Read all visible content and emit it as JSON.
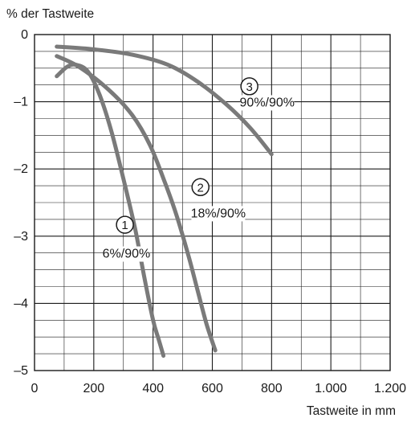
{
  "chart_data": {
    "type": "line",
    "ylabel": "% der Tastweite",
    "xlabel": "Tastweite in mm",
    "xlim": [
      0,
      1200
    ],
    "ylim": [
      -5,
      0
    ],
    "x_ticks": [
      0,
      200,
      400,
      600,
      800,
      1000,
      1200
    ],
    "x_tick_labels": [
      "0",
      "200",
      "400",
      "600",
      "800",
      "1.000",
      "1.200"
    ],
    "y_ticks": [
      0,
      -1,
      -2,
      -3,
      -4,
      -5
    ],
    "y_tick_labels": [
      "0",
      "–1",
      "–2",
      "–3",
      "–4",
      "–5"
    ],
    "x_grid_step": 100,
    "y_grid_step": 0.25,
    "grid": true,
    "line_color": "#7a7a7a",
    "series": [
      {
        "marker": "①",
        "label": "6%/90%",
        "x": [
          75,
          110,
          140,
          180,
          220,
          260,
          300,
          340,
          370,
          400,
          420,
          435
        ],
        "y": [
          -0.62,
          -0.48,
          -0.45,
          -0.55,
          -0.9,
          -1.45,
          -2.15,
          -2.9,
          -3.6,
          -4.25,
          -4.55,
          -4.78
        ]
      },
      {
        "marker": "②",
        "label": "18%/90%",
        "x": [
          75,
          150,
          250,
          330,
          390,
          440,
          480,
          520,
          550,
          580,
          610
        ],
        "y": [
          -0.32,
          -0.48,
          -0.82,
          -1.2,
          -1.65,
          -2.2,
          -2.7,
          -3.3,
          -3.8,
          -4.3,
          -4.7
        ]
      },
      {
        "marker": "③",
        "label": "90%/90%",
        "x": [
          75,
          200,
          330,
          450,
          550,
          650,
          730,
          800
        ],
        "y": [
          -0.18,
          -0.22,
          -0.3,
          -0.45,
          -0.7,
          -1.05,
          -1.4,
          -1.78
        ]
      }
    ]
  }
}
